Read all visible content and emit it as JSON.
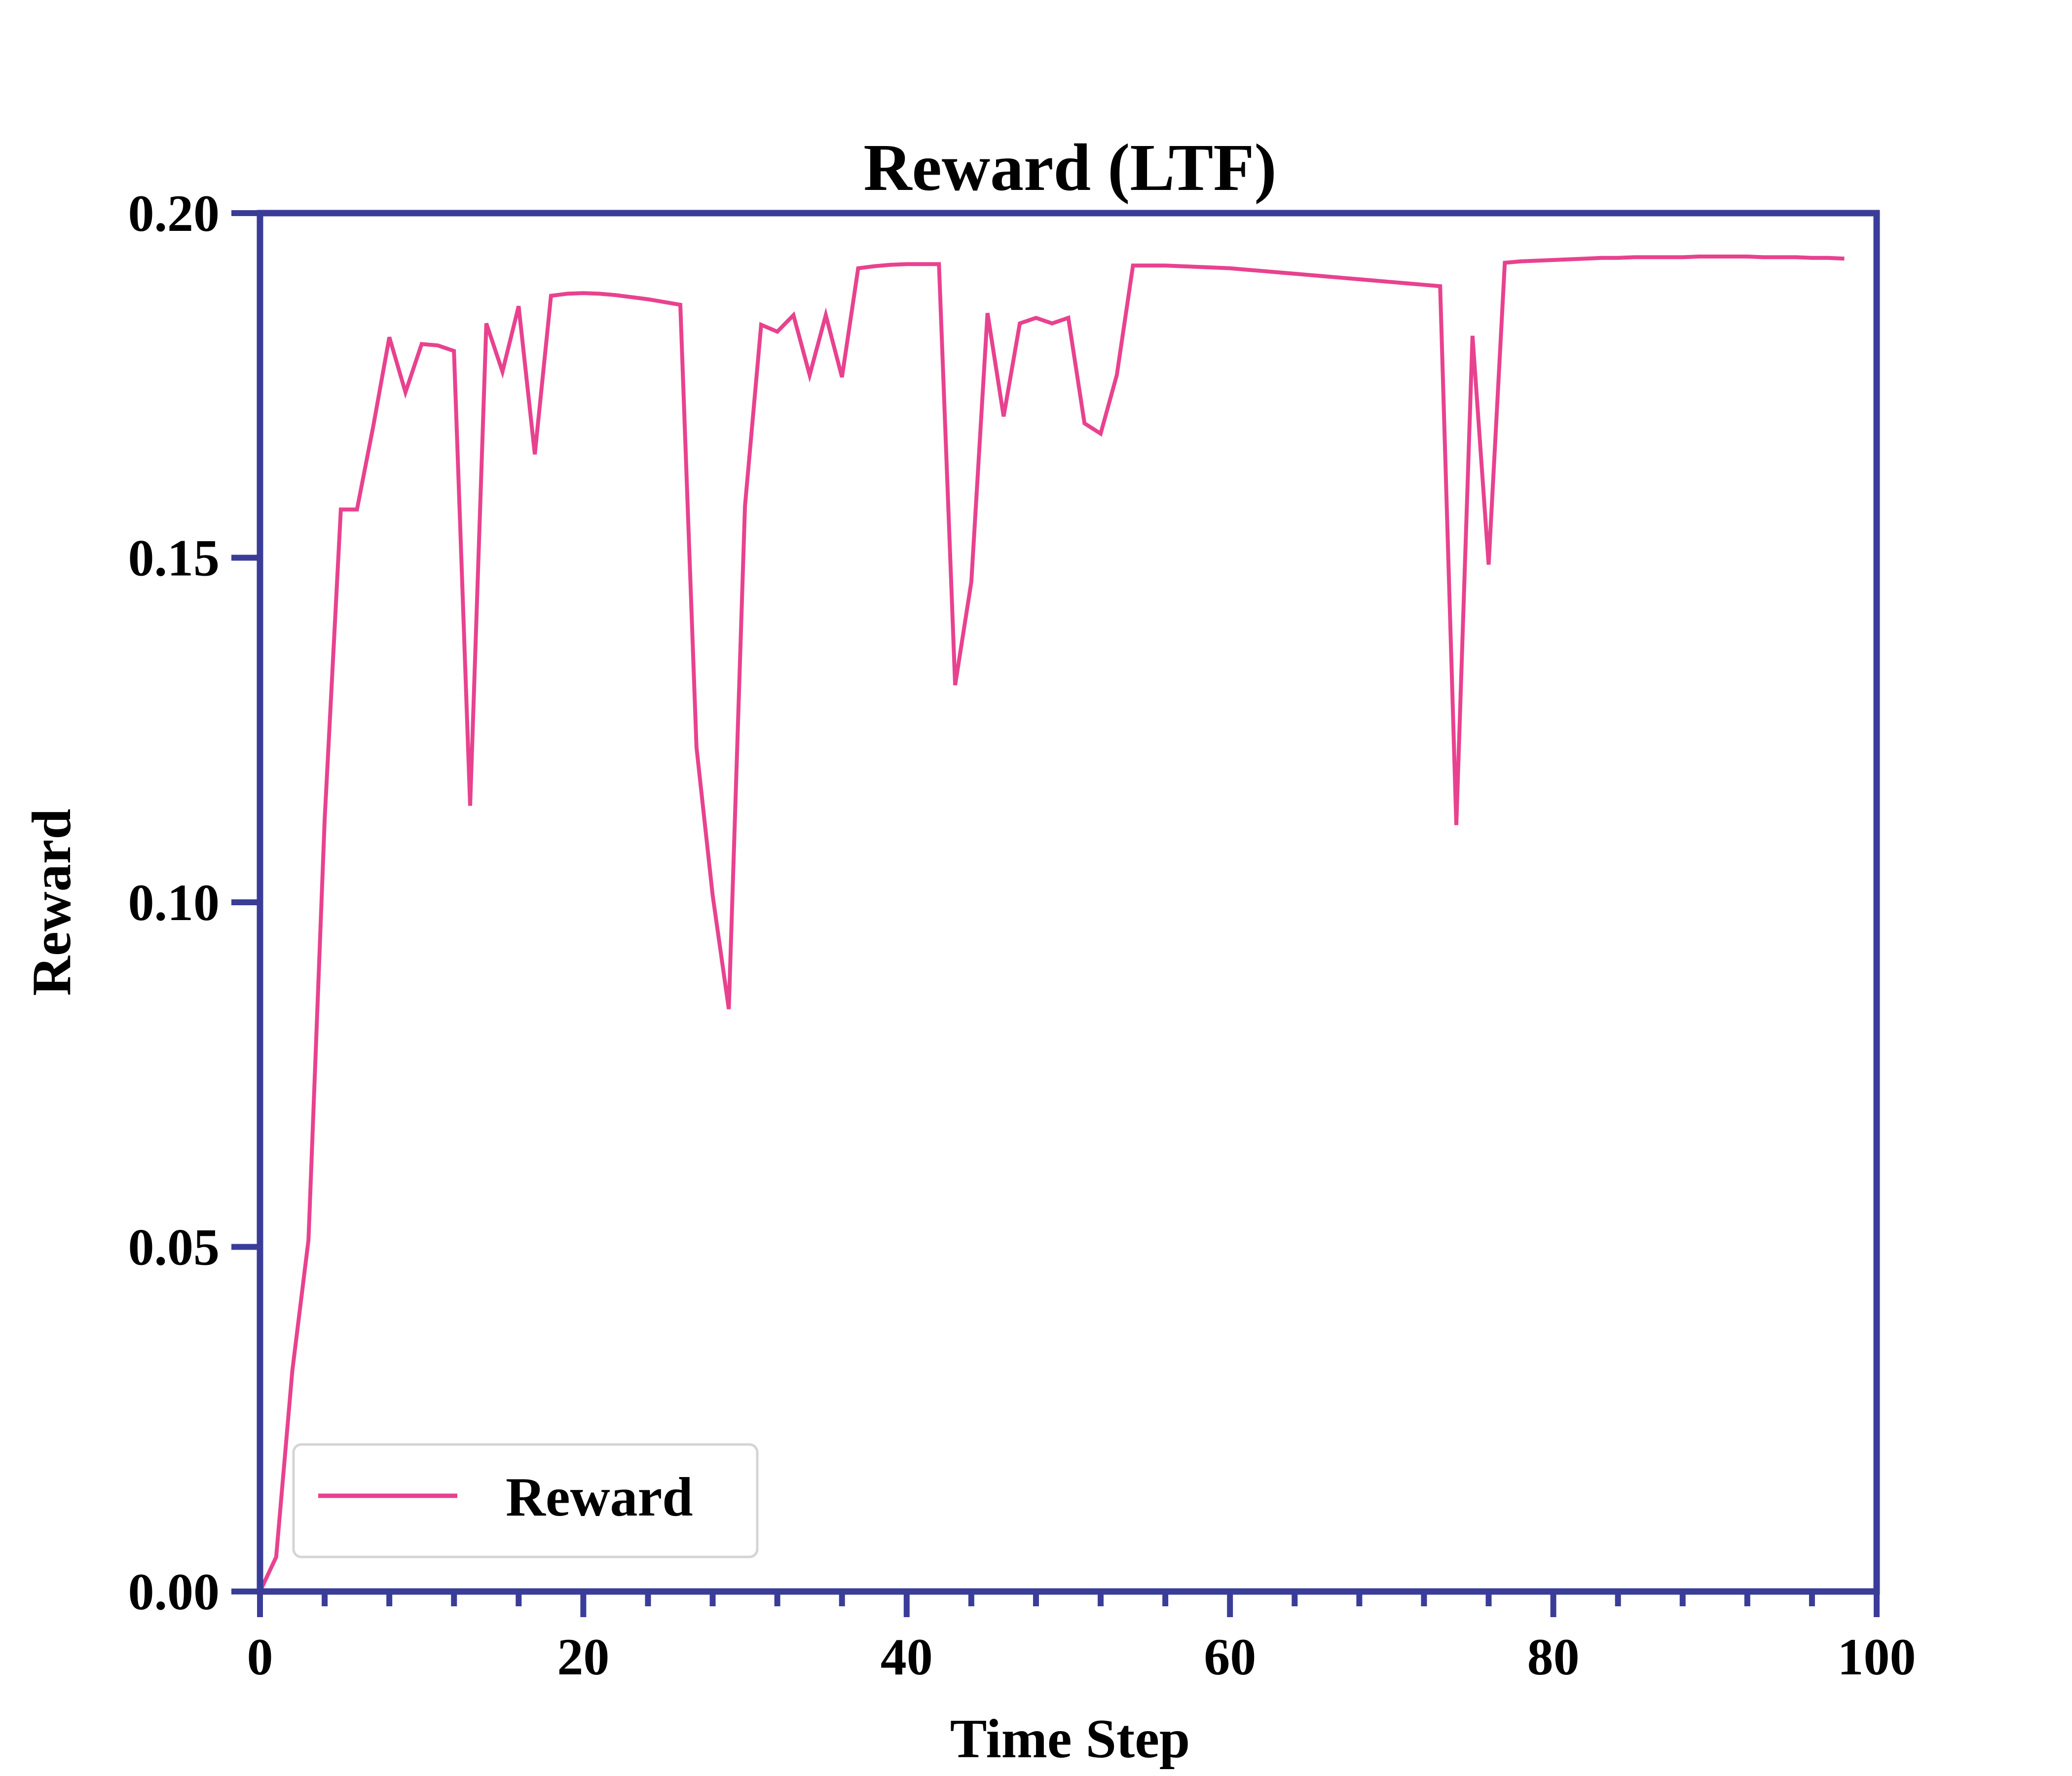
{
  "colors": {
    "axis": "#3A3D98",
    "series": "#E8428F",
    "legend_border": "#D4D4D4",
    "background": "#FFFFFF"
  },
  "chart_data": {
    "type": "line",
    "title": "Reward (LTF)",
    "xlabel": "Time Step",
    "ylabel": "Reward",
    "xlim": [
      0,
      100
    ],
    "ylim": [
      0,
      0.2
    ],
    "xticks": [
      0,
      20,
      40,
      60,
      80,
      100
    ],
    "xtick_labels": [
      "0",
      "20",
      "40",
      "60",
      "80",
      "100"
    ],
    "x_minor_step": 4,
    "yticks": [
      0,
      0.05,
      0.1,
      0.15,
      0.2
    ],
    "ytick_labels": [
      "0.00",
      "0.05",
      "0.10",
      "0.15",
      "0.20"
    ],
    "grid": false,
    "legend_position": "lower-left",
    "series": [
      {
        "name": "Reward",
        "x": [
          0,
          1,
          2,
          3,
          4,
          5,
          6,
          7,
          8,
          9,
          10,
          11,
          12,
          13,
          14,
          15,
          16,
          17,
          18,
          19,
          20,
          21,
          22,
          23,
          24,
          25,
          26,
          27,
          28,
          29,
          30,
          31,
          32,
          33,
          34,
          35,
          36,
          37,
          38,
          39,
          40,
          41,
          42,
          43,
          44,
          45,
          46,
          47,
          48,
          49,
          50,
          51,
          52,
          53,
          54,
          55,
          56,
          57,
          58,
          59,
          60,
          61,
          62,
          63,
          64,
          65,
          66,
          67,
          68,
          69,
          70,
          71,
          72,
          73,
          74,
          75,
          76,
          77,
          78,
          79,
          80,
          81,
          82,
          83,
          84,
          85,
          86,
          87,
          88,
          89,
          90,
          91,
          92,
          93,
          94,
          95,
          96,
          97,
          98
        ],
        "values": [
          0.0,
          0.005,
          0.032,
          0.051,
          0.112,
          0.157,
          0.157,
          0.169,
          0.182,
          0.174,
          0.181,
          0.1808,
          0.18,
          0.114,
          0.184,
          0.177,
          0.1865,
          0.165,
          0.188,
          0.1883,
          0.1884,
          0.1883,
          0.1881,
          0.1878,
          0.1875,
          0.1871,
          0.1867,
          0.1225,
          0.101,
          0.0845,
          0.1575,
          0.1838,
          0.1828,
          0.1852,
          0.1765,
          0.1852,
          0.1762,
          0.192,
          0.1923,
          0.1925,
          0.1926,
          0.1926,
          0.1926,
          0.1315,
          0.1465,
          0.1855,
          0.1705,
          0.184,
          0.1848,
          0.184,
          0.1848,
          0.1695,
          0.168,
          0.1765,
          0.1924,
          0.1924,
          0.1924,
          0.1923,
          0.1922,
          0.1921,
          0.192,
          0.1918,
          0.1916,
          0.1914,
          0.1912,
          0.191,
          0.1908,
          0.1906,
          0.1904,
          0.1902,
          0.19,
          0.1898,
          0.1896,
          0.1894,
          0.1112,
          0.1822,
          0.149,
          0.1928,
          0.193,
          0.1931,
          0.1932,
          0.1933,
          0.1934,
          0.1935,
          0.1935,
          0.1936,
          0.1936,
          0.1936,
          0.1936,
          0.1937,
          0.1937,
          0.1937,
          0.1937,
          0.1936,
          0.1936,
          0.1936,
          0.1935,
          0.1935,
          0.1934
        ]
      }
    ]
  }
}
